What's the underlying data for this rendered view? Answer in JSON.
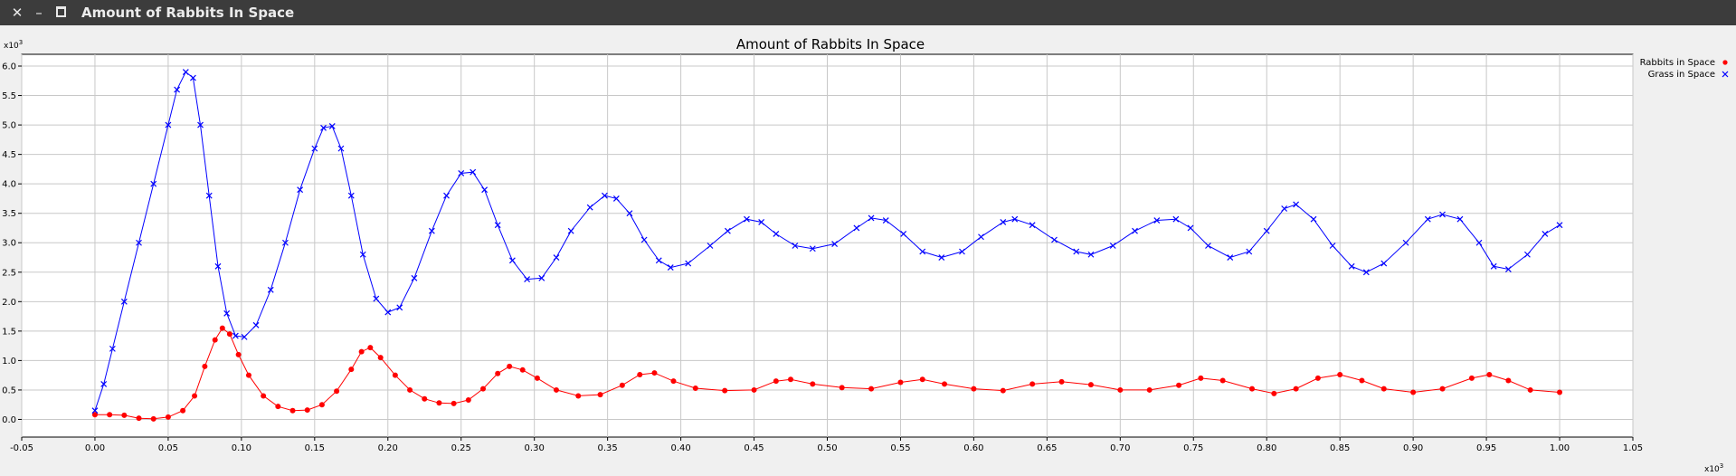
{
  "window": {
    "title": "Amount of Rabbits In Space",
    "close_glyph": "✕",
    "minimize_glyph": "–"
  },
  "chart_data": {
    "type": "scatter",
    "title": "Amount of Rabbits In Space",
    "x_multiplier_label": "x10",
    "x_multiplier_exp": "3",
    "y_multiplier_label": "x10",
    "y_multiplier_exp": "3",
    "xlim": [
      -0.05,
      1.05
    ],
    "ylim": [
      -0.3,
      6.2
    ],
    "x_ticks": [
      -0.05,
      0.0,
      0.05,
      0.1,
      0.15,
      0.2,
      0.25,
      0.3,
      0.35,
      0.4,
      0.45,
      0.5,
      0.55,
      0.6,
      0.65,
      0.7,
      0.75,
      0.8,
      0.85,
      0.9,
      0.95,
      1.0,
      1.05
    ],
    "x_tick_labels": [
      "-0.05",
      "0.00",
      "0.05",
      "0.10",
      "0.15",
      "0.20",
      "0.25",
      "0.30",
      "0.35",
      "0.40",
      "0.45",
      "0.50",
      "0.55",
      "0.60",
      "0.65",
      "0.70",
      "0.75",
      "0.80",
      "0.85",
      "0.90",
      "0.95",
      "1.00",
      "1.05"
    ],
    "y_ticks": [
      0.0,
      0.5,
      1.0,
      1.5,
      2.0,
      2.5,
      3.0,
      3.5,
      4.0,
      4.5,
      5.0,
      5.5,
      6.0
    ],
    "y_tick_labels": [
      "0.0",
      "0.5",
      "1.0",
      "1.5",
      "2.0",
      "2.5",
      "3.0",
      "3.5",
      "4.0",
      "4.5",
      "5.0",
      "5.5",
      "6.0"
    ],
    "grid": true,
    "legend_position": "top-right, outside plot area",
    "series": [
      {
        "name": "Rabbits in Space",
        "marker": "circle",
        "color": "#ff0000",
        "points": [
          [
            0.0,
            0.08
          ],
          [
            0.01,
            0.08
          ],
          [
            0.02,
            0.07
          ],
          [
            0.03,
            0.02
          ],
          [
            0.04,
            0.01
          ],
          [
            0.05,
            0.04
          ],
          [
            0.06,
            0.15
          ],
          [
            0.068,
            0.4
          ],
          [
            0.075,
            0.9
          ],
          [
            0.082,
            1.35
          ],
          [
            0.087,
            1.55
          ],
          [
            0.092,
            1.45
          ],
          [
            0.098,
            1.1
          ],
          [
            0.105,
            0.75
          ],
          [
            0.115,
            0.4
          ],
          [
            0.125,
            0.22
          ],
          [
            0.135,
            0.15
          ],
          [
            0.145,
            0.16
          ],
          [
            0.155,
            0.25
          ],
          [
            0.165,
            0.48
          ],
          [
            0.175,
            0.85
          ],
          [
            0.182,
            1.15
          ],
          [
            0.188,
            1.22
          ],
          [
            0.195,
            1.05
          ],
          [
            0.205,
            0.75
          ],
          [
            0.215,
            0.5
          ],
          [
            0.225,
            0.35
          ],
          [
            0.235,
            0.28
          ],
          [
            0.245,
            0.27
          ],
          [
            0.255,
            0.33
          ],
          [
            0.265,
            0.52
          ],
          [
            0.275,
            0.78
          ],
          [
            0.283,
            0.9
          ],
          [
            0.292,
            0.84
          ],
          [
            0.302,
            0.7
          ],
          [
            0.315,
            0.5
          ],
          [
            0.33,
            0.4
          ],
          [
            0.345,
            0.42
          ],
          [
            0.36,
            0.58
          ],
          [
            0.372,
            0.76
          ],
          [
            0.382,
            0.79
          ],
          [
            0.395,
            0.65
          ],
          [
            0.41,
            0.53
          ],
          [
            0.43,
            0.49
          ],
          [
            0.45,
            0.5
          ],
          [
            0.465,
            0.65
          ],
          [
            0.475,
            0.68
          ],
          [
            0.49,
            0.6
          ],
          [
            0.51,
            0.54
          ],
          [
            0.53,
            0.52
          ],
          [
            0.55,
            0.63
          ],
          [
            0.565,
            0.68
          ],
          [
            0.58,
            0.6
          ],
          [
            0.6,
            0.52
          ],
          [
            0.62,
            0.49
          ],
          [
            0.64,
            0.6
          ],
          [
            0.66,
            0.64
          ],
          [
            0.68,
            0.59
          ],
          [
            0.7,
            0.5
          ],
          [
            0.72,
            0.5
          ],
          [
            0.74,
            0.58
          ],
          [
            0.755,
            0.7
          ],
          [
            0.77,
            0.66
          ],
          [
            0.79,
            0.52
          ],
          [
            0.805,
            0.44
          ],
          [
            0.82,
            0.52
          ],
          [
            0.835,
            0.7
          ],
          [
            0.85,
            0.76
          ],
          [
            0.865,
            0.66
          ],
          [
            0.88,
            0.52
          ],
          [
            0.9,
            0.46
          ],
          [
            0.92,
            0.52
          ],
          [
            0.94,
            0.7
          ],
          [
            0.952,
            0.76
          ],
          [
            0.965,
            0.66
          ],
          [
            0.98,
            0.5
          ],
          [
            1.0,
            0.46
          ]
        ]
      },
      {
        "name": "Grass in Space",
        "marker": "x",
        "color": "#0000ff",
        "points": [
          [
            0.0,
            0.15
          ],
          [
            0.006,
            0.6
          ],
          [
            0.012,
            1.2
          ],
          [
            0.02,
            2.0
          ],
          [
            0.03,
            3.0
          ],
          [
            0.04,
            4.0
          ],
          [
            0.05,
            5.0
          ],
          [
            0.056,
            5.6
          ],
          [
            0.062,
            5.9
          ],
          [
            0.067,
            5.8
          ],
          [
            0.072,
            5.0
          ],
          [
            0.078,
            3.8
          ],
          [
            0.084,
            2.6
          ],
          [
            0.09,
            1.8
          ],
          [
            0.096,
            1.42
          ],
          [
            0.102,
            1.4
          ],
          [
            0.11,
            1.6
          ],
          [
            0.12,
            2.2
          ],
          [
            0.13,
            3.0
          ],
          [
            0.14,
            3.9
          ],
          [
            0.15,
            4.6
          ],
          [
            0.156,
            4.95
          ],
          [
            0.162,
            4.98
          ],
          [
            0.168,
            4.6
          ],
          [
            0.175,
            3.8
          ],
          [
            0.183,
            2.8
          ],
          [
            0.192,
            2.05
          ],
          [
            0.2,
            1.82
          ],
          [
            0.208,
            1.9
          ],
          [
            0.218,
            2.4
          ],
          [
            0.23,
            3.2
          ],
          [
            0.24,
            3.8
          ],
          [
            0.25,
            4.18
          ],
          [
            0.258,
            4.2
          ],
          [
            0.266,
            3.9
          ],
          [
            0.275,
            3.3
          ],
          [
            0.285,
            2.7
          ],
          [
            0.295,
            2.38
          ],
          [
            0.305,
            2.4
          ],
          [
            0.315,
            2.75
          ],
          [
            0.325,
            3.2
          ],
          [
            0.338,
            3.6
          ],
          [
            0.348,
            3.8
          ],
          [
            0.356,
            3.75
          ],
          [
            0.365,
            3.5
          ],
          [
            0.375,
            3.05
          ],
          [
            0.385,
            2.7
          ],
          [
            0.393,
            2.58
          ],
          [
            0.405,
            2.65
          ],
          [
            0.42,
            2.95
          ],
          [
            0.432,
            3.2
          ],
          [
            0.445,
            3.4
          ],
          [
            0.455,
            3.35
          ],
          [
            0.465,
            3.15
          ],
          [
            0.478,
            2.95
          ],
          [
            0.49,
            2.9
          ],
          [
            0.505,
            2.98
          ],
          [
            0.52,
            3.25
          ],
          [
            0.53,
            3.42
          ],
          [
            0.54,
            3.38
          ],
          [
            0.552,
            3.15
          ],
          [
            0.565,
            2.85
          ],
          [
            0.578,
            2.75
          ],
          [
            0.592,
            2.85
          ],
          [
            0.605,
            3.1
          ],
          [
            0.62,
            3.35
          ],
          [
            0.628,
            3.4
          ],
          [
            0.64,
            3.3
          ],
          [
            0.655,
            3.05
          ],
          [
            0.67,
            2.85
          ],
          [
            0.68,
            2.8
          ],
          [
            0.695,
            2.95
          ],
          [
            0.71,
            3.2
          ],
          [
            0.725,
            3.38
          ],
          [
            0.738,
            3.4
          ],
          [
            0.748,
            3.25
          ],
          [
            0.76,
            2.95
          ],
          [
            0.775,
            2.75
          ],
          [
            0.788,
            2.85
          ],
          [
            0.8,
            3.2
          ],
          [
            0.812,
            3.58
          ],
          [
            0.82,
            3.65
          ],
          [
            0.832,
            3.4
          ],
          [
            0.845,
            2.95
          ],
          [
            0.858,
            2.6
          ],
          [
            0.868,
            2.5
          ],
          [
            0.88,
            2.65
          ],
          [
            0.895,
            3.0
          ],
          [
            0.91,
            3.4
          ],
          [
            0.92,
            3.48
          ],
          [
            0.932,
            3.4
          ],
          [
            0.945,
            3.0
          ],
          [
            0.955,
            2.6
          ],
          [
            0.965,
            2.55
          ],
          [
            0.978,
            2.8
          ],
          [
            0.99,
            3.15
          ],
          [
            1.0,
            3.3
          ]
        ]
      }
    ]
  }
}
